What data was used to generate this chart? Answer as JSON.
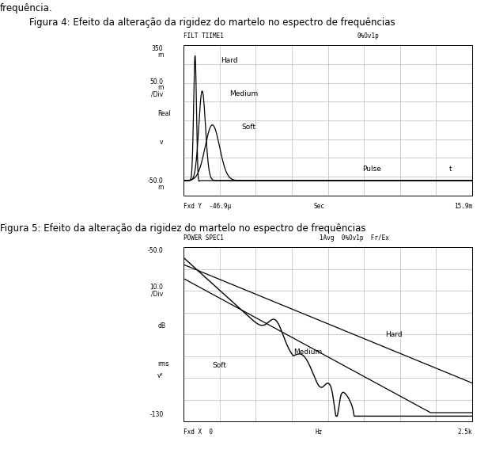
{
  "title1": "Figura 4: Efeito da alteração da rigidez do martelo no espectro de frequências",
  "title2": "Figura 5: Efeito da alteração da rigidez do martelo no espectro de frequências",
  "top_label_left1": "FILT TIIME1",
  "top_label_right1": "0%Ov1p",
  "top_label_left2": "POWER SPEC1",
  "top_label_right2": "1Avg  0%Ov1p  Fr/Ex",
  "ylabel_top1": "350\nm",
  "ylabel_div1": "50.0\nm\n/Div",
  "ylabel_left1_a": "Real",
  "ylabel_left1_b": "v",
  "ylabel_bottom1": "-50.0\nm",
  "xlabel_bottom1": "Fxd Y  -46.9μ",
  "xlabel_mid1": "Sec",
  "xlabel_right1": "15.9m",
  "ylabel_top2": "-50.0",
  "ylabel_div2": "10.0\n/Div",
  "ylabel_left2_a": "dB",
  "ylabel_left2_b": "rms\nv²",
  "ylabel_bottom2": "-130",
  "xlabel_bottom2": "Fxd X  0",
  "xlabel_mid2": "Hz",
  "xlabel_right2": "2.5k",
  "label_hard1": "Hard",
  "label_medium1": "Medium",
  "label_soft1": "Soft",
  "label_pulse1": "Pulse",
  "label_t1": "t",
  "label_hard2": "Hard",
  "label_medium2": "Medium",
  "label_soft2": "Soft",
  "bg_color": "#ffffff",
  "plot_bg": "#ffffff",
  "grid_color": "#bbbbbb",
  "line_color": "#000000",
  "text_color": "#000000",
  "header_text": "frequência."
}
